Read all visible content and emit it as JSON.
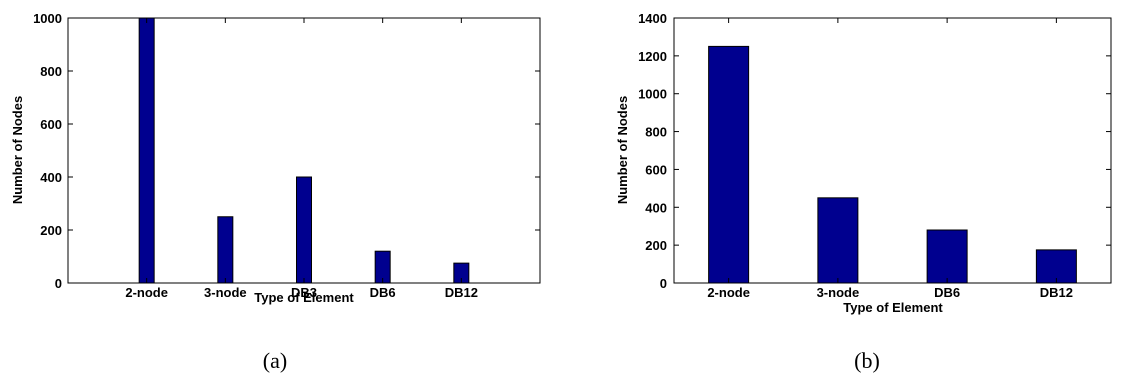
{
  "chart_data": [
    {
      "type": "bar",
      "categories": [
        "2-node",
        "3-node",
        "DB3",
        "DB6",
        "DB12"
      ],
      "values": [
        1000,
        250,
        400,
        120,
        75
      ],
      "xlabel": "Type of Element",
      "ylabel": "Number of Nodes",
      "ylim": [
        0,
        1000
      ],
      "xlim": [
        0,
        6
      ],
      "y_ticks": [
        0,
        200,
        400,
        600,
        800,
        1000
      ],
      "y_tick_labels": [
        "0",
        "200",
        "400",
        "600",
        "800",
        "1000"
      ],
      "bar_color": "#00008f",
      "grid": false,
      "caption": "(a)"
    },
    {
      "type": "bar",
      "categories": [
        "2-node",
        "3-node",
        "DB6",
        "DB12"
      ],
      "values": [
        1250,
        450,
        280,
        175
      ],
      "xlabel": "Type of Element",
      "ylabel": "Number of Nodes",
      "ylim": [
        0,
        1400
      ],
      "xlim": [
        0.5,
        4.5
      ],
      "y_ticks": [
        0,
        200,
        400,
        600,
        800,
        1000,
        1200,
        1400
      ],
      "y_tick_labels": [
        "0",
        "200",
        "400",
        "600",
        "800",
        "1000",
        "1200",
        "1400"
      ],
      "bar_color": "#00008f",
      "grid": false,
      "caption": "(b)"
    }
  ]
}
